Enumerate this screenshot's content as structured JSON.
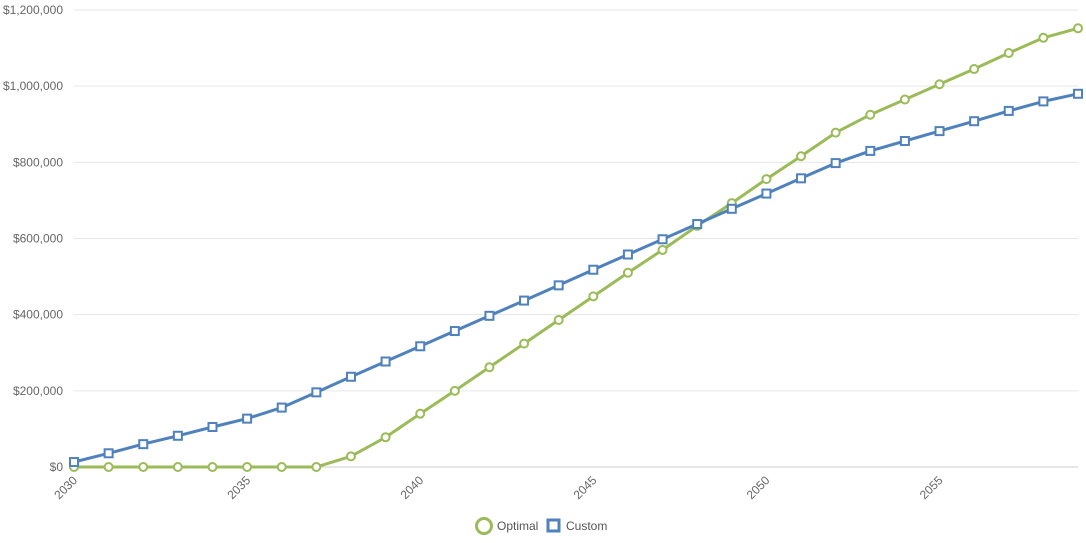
{
  "colors": {
    "optimal": "#9bbb59",
    "custom": "#4f81bd",
    "grid": "#e6e6e6",
    "axis": "#cccccc"
  },
  "chart_data": {
    "type": "line",
    "title": "",
    "xlabel": "",
    "ylabel": "",
    "ylim": [
      0,
      1200000
    ],
    "xlim": [
      2030,
      2059
    ],
    "y_ticks": [
      0,
      200000,
      400000,
      600000,
      800000,
      1000000,
      1200000
    ],
    "y_tick_labels": [
      "$0",
      "$200,000",
      "$400,000",
      "$600,000",
      "$800,000",
      "$1,000,000",
      "$1,200,000"
    ],
    "x_ticks": [
      2030,
      2035,
      2040,
      2045,
      2050,
      2055
    ],
    "x_tick_labels": [
      "2030",
      "2035",
      "2040",
      "2045",
      "2050",
      "2055"
    ],
    "grid": true,
    "legend": "bottom-center",
    "x": [
      2030,
      2031,
      2032,
      2033,
      2034,
      2035,
      2036,
      2037,
      2038,
      2039,
      2040,
      2041,
      2042,
      2043,
      2044,
      2045,
      2046,
      2047,
      2048,
      2049,
      2050,
      2051,
      2052,
      2053,
      2054,
      2055,
      2056,
      2057,
      2058,
      2059
    ],
    "series": [
      {
        "name": "Optimal",
        "marker": "circle",
        "color": "#9bbb59",
        "values": [
          0,
          0,
          0,
          0,
          0,
          0,
          0,
          0,
          28000,
          78000,
          140000,
          200000,
          262000,
          324000,
          386000,
          448000,
          510000,
          570000,
          633000,
          693000,
          756000,
          816000,
          878000,
          925000,
          965000,
          1005000,
          1045000,
          1087000,
          1127000,
          1152000
        ]
      },
      {
        "name": "Custom",
        "marker": "square",
        "color": "#4f81bd",
        "values": [
          13000,
          36000,
          60000,
          82000,
          105000,
          127000,
          156000,
          196000,
          237000,
          277000,
          317000,
          357000,
          397000,
          437000,
          477000,
          518000,
          558000,
          598000,
          638000,
          678000,
          718000,
          758000,
          798000,
          830000,
          856000,
          882000,
          908000,
          935000,
          960000,
          980000
        ]
      }
    ]
  }
}
